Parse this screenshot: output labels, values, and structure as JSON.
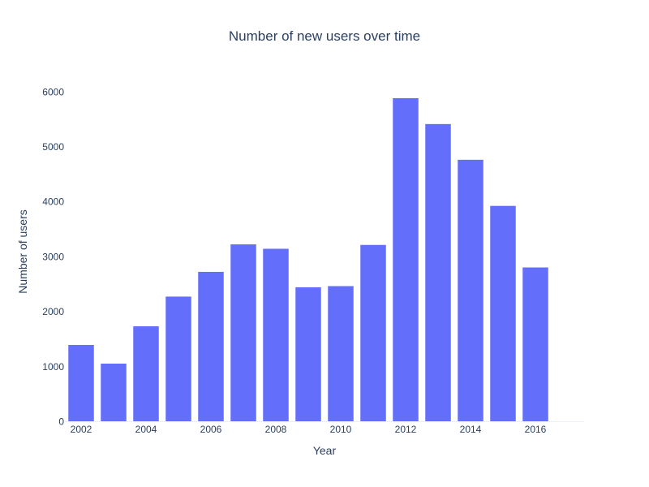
{
  "chart_data": {
    "type": "bar",
    "title": "Number of new users over time",
    "xlabel": "Year",
    "ylabel": "Number of users",
    "categories": [
      2002,
      2003,
      2004,
      2005,
      2006,
      2007,
      2008,
      2009,
      2010,
      2011,
      2012,
      2013,
      2014,
      2015,
      2016
    ],
    "values": [
      1400,
      1060,
      1740,
      2280,
      2730,
      3230,
      3150,
      2450,
      2470,
      3220,
      5890,
      5420,
      4770,
      3930,
      2810
    ],
    "x_tick_labels": [
      "2002",
      "2004",
      "2006",
      "2008",
      "2010",
      "2012",
      "2014",
      "2016"
    ],
    "y_ticks": [
      0,
      1000,
      2000,
      3000,
      4000,
      5000,
      6000
    ],
    "y_tick_labels": [
      "0",
      "1000",
      "2000",
      "3000",
      "4000",
      "5000",
      "6000"
    ],
    "xlim": [
      2001.5,
      2017.5
    ],
    "ylim": [
      0,
      6200
    ],
    "grid": false,
    "legend": "none",
    "colors": {
      "bar": "#636efa",
      "text": "#2a3f5f",
      "background": "#ffffff",
      "axis_line": "#ebf0f8"
    }
  }
}
